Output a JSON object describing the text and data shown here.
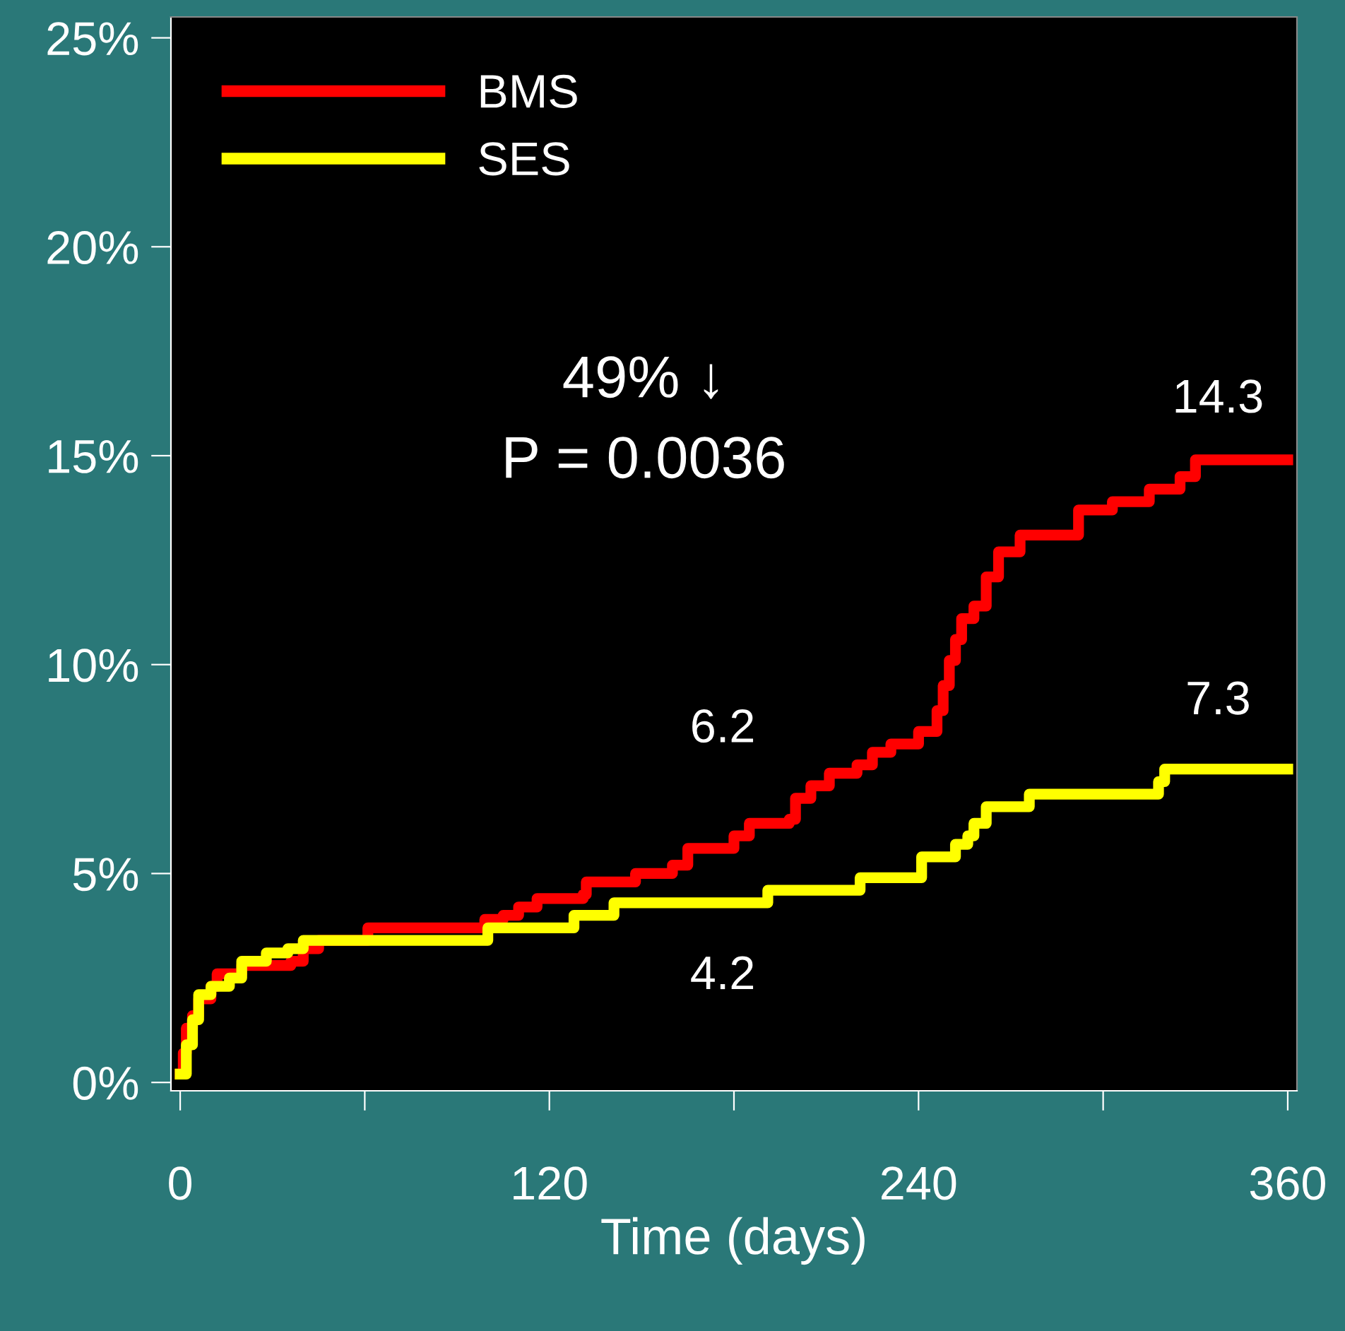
{
  "chart_data": {
    "type": "step",
    "xlabel": "Time (days)",
    "xlim": [
      -3,
      363
    ],
    "ylim": [
      -0.2,
      25.5
    ],
    "xticks": [
      0,
      {
        "value": 60,
        "label": null
      },
      120,
      {
        "value": 180,
        "label": null
      },
      240,
      {
        "value": 300,
        "label": null
      },
      360
    ],
    "yticks": [
      {
        "value": 0,
        "label": "0%"
      },
      {
        "value": 5,
        "label": "5%"
      },
      {
        "value": 10,
        "label": "10%"
      },
      {
        "value": 15,
        "label": "15%"
      },
      {
        "value": 20,
        "label": "20%"
      },
      {
        "value": 25,
        "label": "25%"
      }
    ],
    "grid": false,
    "legend": "top left",
    "line_style": "solid",
    "marker": "none",
    "series": [
      {
        "name": "BMS",
        "color": "#ff0000",
        "x": [
          0,
          1,
          2,
          4,
          6,
          10,
          12,
          20,
          36,
          40,
          45,
          60,
          61,
          98,
          99,
          105,
          110,
          116,
          131,
          132,
          145,
          148,
          160,
          165,
          180,
          185,
          198,
          200,
          205,
          211,
          220,
          225,
          231,
          240,
          246,
          248,
          250,
          252,
          254,
          258,
          262,
          266,
          273,
          292,
          303,
          315,
          325,
          330,
          360
        ],
        "values": [
          0.2,
          0.7,
          1.3,
          1.6,
          2.0,
          2.3,
          2.6,
          2.8,
          2.9,
          3.2,
          3.4,
          3.4,
          3.7,
          3.7,
          3.9,
          4.0,
          4.2,
          4.4,
          4.5,
          4.8,
          4.8,
          5.0,
          5.2,
          5.6,
          5.9,
          6.2,
          6.3,
          6.8,
          7.1,
          7.4,
          7.6,
          7.9,
          8.1,
          8.4,
          8.9,
          9.5,
          10.1,
          10.6,
          11.1,
          11.4,
          12.1,
          12.7,
          13.1,
          13.7,
          13.9,
          14.2,
          14.5,
          14.9,
          14.9
        ]
      },
      {
        "name": "SES",
        "color": "#ffff00",
        "x": [
          0,
          2,
          4,
          6,
          10,
          16,
          20,
          28,
          35,
          40,
          98,
          100,
          126,
          128,
          140,
          141,
          190,
          191,
          220,
          221,
          240,
          241,
          250,
          252,
          256,
          258,
          262,
          275,
          276,
          316,
          318,
          320,
          360
        ],
        "values": [
          0.2,
          0.9,
          1.5,
          2.1,
          2.3,
          2.5,
          2.9,
          3.1,
          3.2,
          3.4,
          3.4,
          3.7,
          3.7,
          4.0,
          4.0,
          4.3,
          4.3,
          4.6,
          4.6,
          4.9,
          4.9,
          5.4,
          5.4,
          5.7,
          5.9,
          6.2,
          6.6,
          6.6,
          6.9,
          6.9,
          7.2,
          7.5,
          7.5
        ]
      }
    ],
    "annotations": [
      "49% ↓",
      "P = 0.0036",
      "14.3",
      "6.2",
      "7.3",
      "4.2"
    ]
  }
}
